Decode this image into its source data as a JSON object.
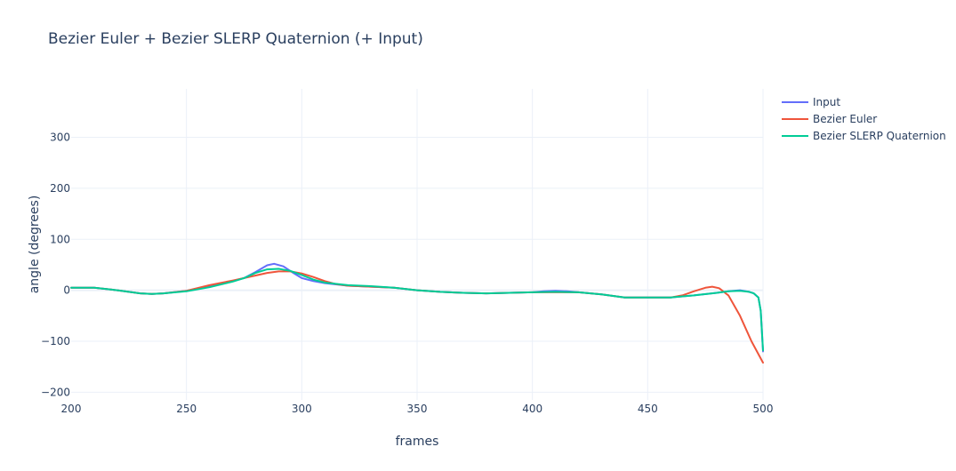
{
  "chart_data": {
    "type": "line",
    "title": "Bezier Euler + Bezier SLERP Quaternion (+ Input)",
    "xlabel": "frames",
    "ylabel": "angle (degrees)",
    "xlim": [
      200,
      500
    ],
    "ylim": [
      -215,
      395
    ],
    "xticks": [
      200,
      250,
      300,
      350,
      400,
      450,
      500
    ],
    "yticks": [
      -200,
      -100,
      0,
      100,
      200,
      300
    ],
    "ytick_labels": [
      "−200",
      "−100",
      "0",
      "100",
      "200",
      "300"
    ],
    "grid": true,
    "legend_position": "top-right",
    "series": [
      {
        "name": "Input",
        "color": "#636efa",
        "x": [
          200,
          210,
          220,
          230,
          235,
          240,
          250,
          260,
          270,
          275,
          280,
          285,
          288,
          292,
          296,
          300,
          305,
          310,
          320,
          330,
          340,
          350,
          360,
          370,
          380,
          390,
          400,
          405,
          410,
          415,
          420,
          430,
          440,
          450,
          460,
          470,
          480,
          485,
          490,
          494,
          496,
          498,
          499,
          500
        ],
        "y": [
          5,
          5,
          0,
          -6,
          -7,
          -6,
          -1,
          8,
          18,
          24,
          36,
          49,
          52,
          47,
          35,
          24,
          18,
          14,
          9,
          7,
          5,
          0,
          -3,
          -5,
          -6,
          -5,
          -4,
          -2,
          -1,
          -2,
          -4,
          -8,
          -14,
          -14,
          -14,
          -10,
          -5,
          -2,
          0,
          -3,
          -6,
          -14,
          -40,
          -120
        ]
      },
      {
        "name": "Bezier Euler",
        "color": "#ef553b",
        "x": [
          200,
          210,
          220,
          230,
          235,
          240,
          250,
          260,
          270,
          275,
          280,
          285,
          290,
          295,
          300,
          305,
          310,
          315,
          320,
          330,
          340,
          350,
          360,
          370,
          380,
          390,
          400,
          410,
          420,
          430,
          440,
          450,
          460,
          465,
          470,
          475,
          478,
          481,
          485,
          490,
          495,
          500
        ],
        "y": [
          5,
          5,
          0,
          -6,
          -7,
          -6,
          -1,
          10,
          19,
          24,
          29,
          34,
          37,
          37,
          33,
          26,
          18,
          12,
          9,
          7,
          5,
          0,
          -3,
          -5,
          -6,
          -5,
          -4,
          -4,
          -4,
          -8,
          -14,
          -14,
          -14,
          -10,
          -2,
          5,
          7,
          4,
          -10,
          -50,
          -100,
          -142
        ]
      },
      {
        "name": " Bezier SLERP Quaternion",
        "color": "#00cc96",
        "x": [
          200,
          210,
          220,
          230,
          235,
          240,
          250,
          260,
          270,
          275,
          280,
          285,
          290,
          295,
          300,
          305,
          310,
          320,
          330,
          340,
          350,
          360,
          370,
          380,
          390,
          400,
          410,
          420,
          430,
          440,
          450,
          460,
          470,
          480,
          485,
          490,
          494,
          496,
          498,
          499,
          500
        ],
        "y": [
          5,
          5,
          0,
          -6,
          -7,
          -6,
          -2,
          6,
          17,
          24,
          34,
          41,
          42,
          38,
          30,
          21,
          15,
          10,
          8,
          5,
          0,
          -3,
          -5,
          -6,
          -5,
          -4,
          -3,
          -4,
          -8,
          -14,
          -14,
          -14,
          -10,
          -5,
          -2,
          -1,
          -3,
          -6,
          -14,
          -40,
          -118
        ]
      }
    ]
  }
}
